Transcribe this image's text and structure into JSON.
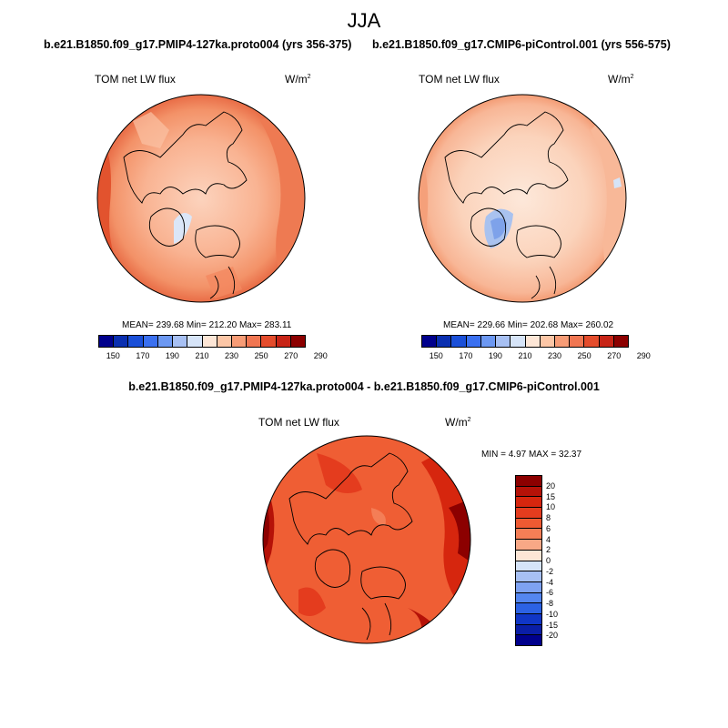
{
  "season": "JJA",
  "panels": [
    {
      "experiment": "b.e21.B1850.f09_g17.PMIP4-127ka.proto004 (yrs 356-375)",
      "variable": "TOM net LW flux",
      "units": "W/m",
      "units_exp": "2",
      "stats": "MEAN= 239.68  Min= 212.20  Max= 283.11"
    },
    {
      "experiment": "b.e21.B1850.f09_g17.CMIP6-piControl.001 (yrs 556-575)",
      "variable": "TOM net LW flux",
      "units": "W/m",
      "units_exp": "2",
      "stats": "MEAN= 229.66  Min= 202.68  Max= 260.02"
    }
  ],
  "diff": {
    "title": "b.e21.B1850.f09_g17.PMIP4-127ka.proto004 - b.e21.B1850.f09_g17.CMIP6-piControl.001",
    "variable": "TOM net LW flux",
    "units": "W/m",
    "units_exp": "2",
    "stats": "MIN =   4.97 MAX =  32.37"
  },
  "colorbar_abs": {
    "labels": [
      "150",
      "170",
      "190",
      "210",
      "230",
      "250",
      "270",
      "290"
    ],
    "colors": [
      "#00008c",
      "#0a2fb0",
      "#1a4fd8",
      "#3a70f0",
      "#6c98f2",
      "#a7c0f3",
      "#d6e4f8",
      "#fde6d6",
      "#fcc6a6",
      "#f79c76",
      "#f07652",
      "#e44c2c",
      "#c72416",
      "#8c0000"
    ]
  },
  "colorbar_diff": {
    "labels": [
      "20",
      "15",
      "10",
      "8",
      "6",
      "4",
      "2",
      "0",
      "-2",
      "-4",
      "-6",
      "-8",
      "-10",
      "-15",
      "-20"
    ],
    "colors": [
      "#8c0000",
      "#b51208",
      "#d6260e",
      "#e43c1e",
      "#ee5a32",
      "#f47e56",
      "#f8a886",
      "#fde6d6",
      "#d6e4f8",
      "#a7c0f3",
      "#7ea2f2",
      "#5486f0",
      "#2c62e4",
      "#1036c6",
      "#0a1ea6",
      "#00008c"
    ]
  },
  "map_fill": {
    "panel1": "#f6a688",
    "panel2": "#fce2d0",
    "diff": "#ee5a32"
  }
}
